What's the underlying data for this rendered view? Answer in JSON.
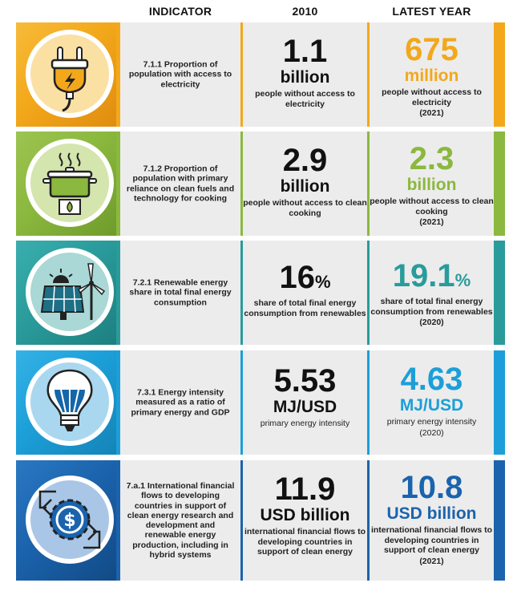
{
  "header": {
    "indicator": "INDICATOR",
    "year_2010": "2010",
    "latest": "LATEST YEAR"
  },
  "colors": {
    "electricity": "#f3a81b",
    "cooking": "#8bb83e",
    "renewables": "#2a9b9b",
    "intensity": "#1c9fd8",
    "finance": "#1b63ad"
  },
  "rows": [
    {
      "icon": "electric-plug-icon",
      "indicator": "7.1.1 Proportion of population with access to electricity",
      "v2010": "1.1",
      "u2010": "billion",
      "d2010": "people without access to electricity",
      "vlatest": "675",
      "ulatest": "million",
      "dlatest": "people without access to electricity",
      "ylatest": "(2021)"
    },
    {
      "icon": "cooking-pot-icon",
      "indicator": "7.1.2 Proportion of population with primary reliance on clean fuels and technology for cooking",
      "v2010": "2.9",
      "u2010": "billion",
      "d2010": "people without access to clean cooking",
      "vlatest": "2.3",
      "ulatest": "billion",
      "dlatest": "people without access to clean cooking",
      "ylatest": "(2021)"
    },
    {
      "icon": "solar-wind-icon",
      "indicator": "7.2.1 Renewable energy share in total final energy consumption",
      "v2010": "16",
      "u2010": "%",
      "d2010": "share of total final energy consumption from renewables",
      "vlatest": "19.1",
      "ulatest": "%",
      "dlatest": "share of total final energy consumption from renewables",
      "ylatest": "(2020)"
    },
    {
      "icon": "light-bulb-icon",
      "indicator": "7.3.1 Energy intensity measured as a ratio of primary energy and GDP",
      "v2010": "5.53",
      "u2010": "MJ/USD",
      "d2010": "primary energy intensity",
      "vlatest": "4.63",
      "ulatest": "MJ/USD",
      "dlatest": "primary energy intensity",
      "ylatest": "(2020)"
    },
    {
      "icon": "dollar-gear-icon",
      "indicator": "7.a.1 International financial flows to developing countries in support of clean energy research and development and renewable energy production, including in hybrid systems",
      "v2010": "11.9",
      "u2010": "USD billion",
      "d2010": "international financial flows to developing countries in support of clean energy",
      "vlatest": "10.8",
      "ulatest": "USD billion",
      "dlatest": "international financial flows to developing countries in support of clean energy",
      "ylatest": "(2021)"
    }
  ],
  "chart_data": {
    "type": "table",
    "columns": [
      "INDICATOR",
      "2010",
      "LATEST YEAR"
    ],
    "rows": [
      {
        "indicator": "7.1.1",
        "value_2010": 1.1,
        "value_latest": 675,
        "unit_2010": "billion",
        "unit_latest": "million",
        "latest_year": "2021"
      },
      {
        "indicator": "7.1.2",
        "value_2010": 2.9,
        "value_latest": 2.3,
        "unit_2010": "billion",
        "unit_latest": "billion",
        "latest_year": "2021"
      },
      {
        "indicator": "7.2.1",
        "value_2010": 16,
        "value_latest": 19.1,
        "unit_2010": "%",
        "unit_latest": "%",
        "latest_year": "2020"
      },
      {
        "indicator": "7.3.1",
        "value_2010": 5.53,
        "value_latest": 4.63,
        "unit_2010": "MJ/USD",
        "unit_latest": "MJ/USD",
        "latest_year": "2020"
      },
      {
        "indicator": "7.a.1",
        "value_2010": 11.9,
        "value_latest": 10.8,
        "unit_2010": "USD billion",
        "unit_latest": "USD billion",
        "latest_year": "2021"
      }
    ]
  }
}
